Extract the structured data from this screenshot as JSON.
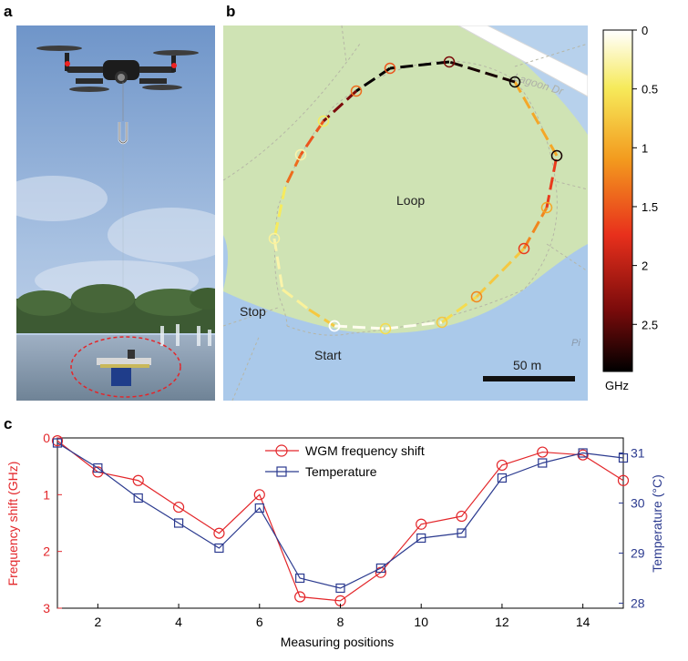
{
  "panels": {
    "a": "a",
    "b": "b",
    "c": "c"
  },
  "map": {
    "street": "Lagoon Dr",
    "street_fragment": "Pi",
    "loop": "Loop",
    "start": "Start",
    "stop": "Stop",
    "scale": "50 m"
  },
  "colorbar": {
    "ticks": [
      "0",
      "0.5",
      "1",
      "1.5",
      "2",
      "2.5"
    ],
    "tick_values": [
      0,
      0.5,
      1,
      1.5,
      2,
      2.5
    ],
    "range": [
      0,
      2.9
    ],
    "unit": "GHz",
    "colors": [
      "#ffffff",
      "#f6ea5a",
      "#f39a1e",
      "#e8301c",
      "#7a0b0b",
      "#000000"
    ]
  },
  "chart_data": {
    "type": "line",
    "xlabel": "Measuring positions",
    "ylabel_left": "Frequency shift (GHz)",
    "ylabel_right": "Temperature (°C)",
    "xlim": [
      1,
      15
    ],
    "xticks": [
      2,
      4,
      6,
      8,
      10,
      12,
      14
    ],
    "ylim_left": [
      0,
      3
    ],
    "ylim_left_inverted": true,
    "yticks_left": [
      0,
      1,
      2,
      3
    ],
    "ylim_right": [
      27.9,
      31.3
    ],
    "yticks_right": [
      28,
      29,
      30,
      31
    ],
    "legend_position": "top-center",
    "series": [
      {
        "name": "WGM frequency shift",
        "axis": "left",
        "color": "#e3262a",
        "marker": "circle",
        "x": [
          1,
          2,
          3,
          4,
          5,
          6,
          7,
          8,
          9,
          10,
          11,
          12,
          13,
          14,
          15
        ],
        "values": [
          0.05,
          0.6,
          0.75,
          1.22,
          1.68,
          1.0,
          2.8,
          2.87,
          2.37,
          1.52,
          1.38,
          0.48,
          0.25,
          0.3,
          0.75
        ]
      },
      {
        "name": "Temperature",
        "axis": "right",
        "color": "#2b3a8f",
        "marker": "square",
        "x": [
          1,
          2,
          3,
          4,
          5,
          6,
          7,
          8,
          9,
          10,
          11,
          12,
          13,
          14,
          15
        ],
        "values": [
          31.2,
          30.7,
          30.1,
          29.6,
          29.1,
          29.9,
          28.5,
          28.3,
          28.7,
          29.3,
          29.4,
          30.5,
          30.8,
          31.0,
          30.9
        ]
      }
    ]
  }
}
